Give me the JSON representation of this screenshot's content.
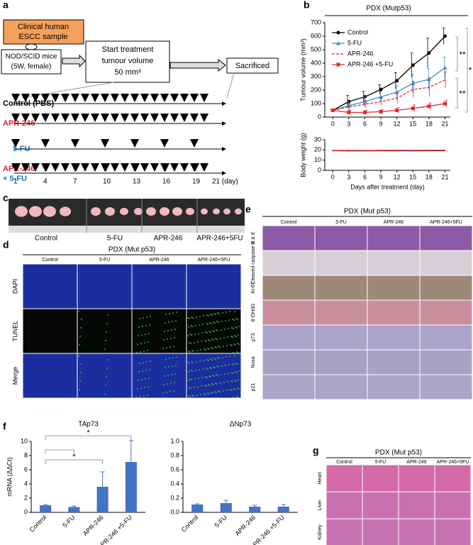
{
  "panel_labels": [
    "a",
    "b",
    "c",
    "d",
    "e",
    "f",
    "g"
  ],
  "panel_a": {
    "sample": [
      "Clinical human",
      "ESCC sample"
    ],
    "mice": [
      "NOD/SCID mice",
      "(5W, female)"
    ],
    "start": [
      "Start treatment",
      "tumour volume",
      "50 mm³"
    ],
    "end": "Sacrificed",
    "groups": [
      "Control (PBS)",
      "APR-246",
      "5-FU",
      "APR-246",
      "+ 5-FU"
    ],
    "days": [
      "1",
      "4",
      "7",
      "10",
      "13",
      "16",
      "19",
      "21 (day)"
    ]
  },
  "panel_c": {
    "groups": [
      "Control",
      "5-FU",
      "APR-246",
      "APR-246+5FU"
    ]
  },
  "panel_d": {
    "title": "PDX (Mut p53)",
    "columns": [
      "Control",
      "5-FU",
      "APR-246",
      "APR-246+5FU"
    ],
    "rows": [
      "DAPI",
      "TUNEL",
      "Merge"
    ]
  },
  "panel_e": {
    "title": "PDX (Mut p53)",
    "columns": [
      "Control",
      "5-FU",
      "APR-246",
      "APR-246+5FU"
    ],
    "rows": [
      "H & E",
      "Cleaved caspase-3",
      "Ki-67",
      "8-OHdG",
      "p73",
      "Noxa",
      "p21"
    ]
  },
  "panel_g": {
    "title": "PDX (Mut p53)",
    "columns": [
      "Control",
      "5-FU",
      "APR-246",
      "APR-246+5FU"
    ],
    "rows": [
      "Heart",
      "Liver",
      "Kidney"
    ]
  },
  "chart_data": [
    {
      "type": "line",
      "title": "PDX (Mutp53)",
      "ylabel": "Tumour volume (mm³)",
      "x": [
        0,
        3,
        6,
        9,
        12,
        15,
        18,
        21
      ],
      "xlim": [
        -1.5,
        22
      ],
      "xticks": [
        0,
        3,
        6,
        9,
        12,
        15,
        18,
        21
      ],
      "ylim": [
        0,
        700
      ],
      "yticks": [
        0,
        100,
        200,
        300,
        400,
        500,
        600,
        700
      ],
      "legend": "top-left",
      "annotations": [
        "**",
        "**",
        "*"
      ],
      "series": [
        {
          "name": "Control",
          "color": "#000000",
          "marker": "circle",
          "dash": false,
          "values": [
            50,
            115,
            150,
            205,
            270,
            385,
            475,
            600
          ],
          "errors": [
            10,
            45,
            40,
            35,
            60,
            90,
            110,
            60
          ]
        },
        {
          "name": "5-FU",
          "color": "#3b8fd0",
          "marker": "triangle",
          "dash": false,
          "values": [
            50,
            85,
            115,
            150,
            185,
            250,
            280,
            365
          ],
          "errors": [
            10,
            30,
            35,
            40,
            50,
            70,
            80,
            80
          ]
        },
        {
          "name": "APR-246",
          "color": "#e8262a",
          "marker": "none",
          "dash": true,
          "values": [
            50,
            75,
            95,
            115,
            140,
            205,
            220,
            275
          ],
          "errors": [
            10,
            25,
            30,
            30,
            40,
            60,
            70,
            60
          ]
        },
        {
          "name": "APR-246 +5-FU",
          "color": "#e8262a",
          "marker": "square",
          "dash": false,
          "values": [
            50,
            35,
            35,
            40,
            50,
            65,
            80,
            100
          ],
          "errors": [
            5,
            15,
            15,
            15,
            20,
            25,
            25,
            25
          ]
        }
      ]
    },
    {
      "type": "line",
      "ylabel": "Body weight (g)",
      "xlabel": "Days after treatment (day)",
      "x": [
        0,
        3,
        6,
        9,
        12,
        15,
        18,
        21
      ],
      "xlim": [
        -1.5,
        22
      ],
      "xticks": [
        0,
        3,
        6,
        9,
        12,
        15,
        18,
        21
      ],
      "ylim": [
        0,
        30
      ],
      "yticks": [
        0,
        10,
        20,
        30
      ],
      "series": [
        {
          "color": "#000000",
          "marker": "none",
          "dash": false,
          "values": [
            19.5,
            19.6,
            19.5,
            19.6,
            19.7,
            19.6,
            19.7,
            19.8
          ]
        },
        {
          "color": "#3b8fd0",
          "marker": "none",
          "dash": false,
          "values": [
            19.4,
            19.4,
            19.3,
            19.4,
            19.5,
            19.4,
            19.5,
            19.6
          ]
        },
        {
          "color": "#e8262a",
          "marker": "none",
          "dash": true,
          "values": [
            19.3,
            19.2,
            19.2,
            19.3,
            19.3,
            19.2,
            19.4,
            19.5
          ]
        },
        {
          "color": "#e8262a",
          "marker": "none",
          "dash": false,
          "values": [
            19.2,
            19.0,
            19.0,
            19.1,
            19.1,
            19.0,
            19.2,
            19.3
          ]
        }
      ]
    },
    {
      "type": "bar",
      "title": "TAp73",
      "ylabel": "mRNA (ΔΔCt)",
      "color": "#4472c4",
      "categories": [
        "Control",
        "5-FU",
        "APR-246",
        "APR-246 +5-FU"
      ],
      "values": [
        1.0,
        0.75,
        3.6,
        7.1
      ],
      "errors": [
        0.1,
        0.15,
        2.1,
        3.0
      ],
      "ylim": [
        0,
        10
      ],
      "yticks": [
        0,
        2,
        4,
        6,
        8,
        10
      ],
      "annotations": [
        "*",
        "*"
      ]
    },
    {
      "type": "bar",
      "title": "ΔNp73",
      "color": "#4472c4",
      "categories": [
        "Control",
        "5-FU",
        "APR-246",
        "APR-246 +5-FU"
      ],
      "values": [
        0.11,
        0.13,
        0.08,
        0.08
      ],
      "errors": [
        0.01,
        0.04,
        0.02,
        0.03
      ],
      "ylim": [
        0,
        1
      ],
      "yticks": [
        {
          "value": 0,
          "label": "0.0"
        },
        0.2,
        0.4,
        0.6,
        0.8,
        {
          "value": 1,
          "label": "1.0"
        }
      ]
    }
  ]
}
